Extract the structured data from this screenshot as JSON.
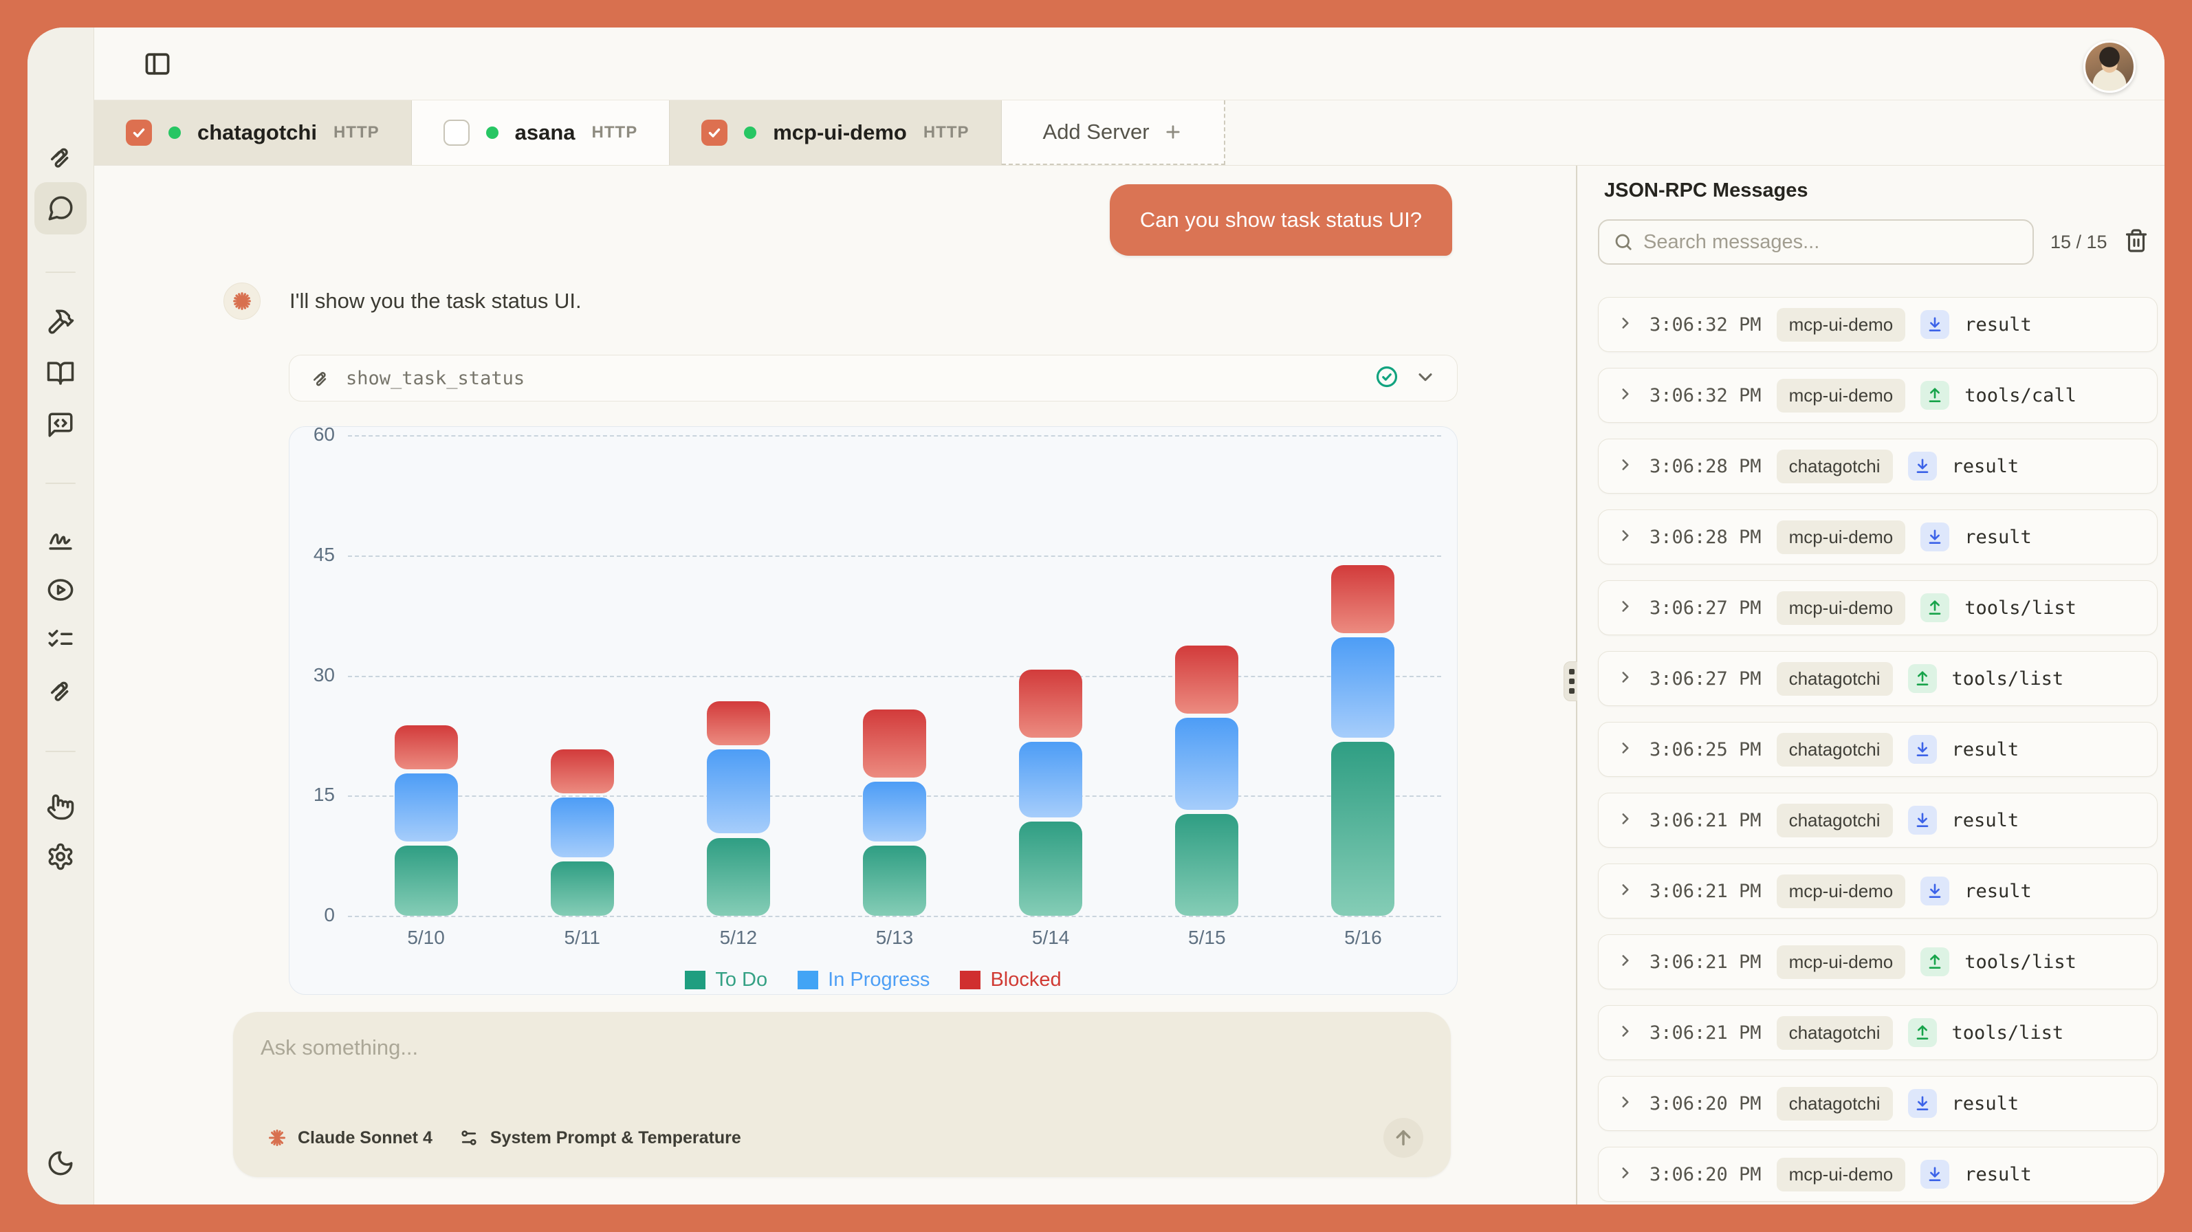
{
  "accent_color": "#D8704F",
  "sidebar": {
    "items": [
      {
        "name": "mcp-logo",
        "active": false
      },
      {
        "name": "chat",
        "active": true
      },
      {
        "name": "hammer-tools",
        "active": false
      },
      {
        "name": "book-resources",
        "active": false
      },
      {
        "name": "message-code-prompts",
        "active": false
      },
      {
        "name": "signature",
        "active": false
      },
      {
        "name": "play",
        "active": false
      },
      {
        "name": "checklist",
        "active": false
      },
      {
        "name": "clip-swirl",
        "active": false
      },
      {
        "name": "hand",
        "active": false
      },
      {
        "name": "settings",
        "active": false
      },
      {
        "name": "dark-mode-moon",
        "active": false
      }
    ]
  },
  "server_tabs": [
    {
      "label": "chatagotchi",
      "protocol": "HTTP",
      "checked": true,
      "active": true,
      "status": "online"
    },
    {
      "label": "asana",
      "protocol": "HTTP",
      "checked": false,
      "active": false,
      "status": "online"
    },
    {
      "label": "mcp-ui-demo",
      "protocol": "HTTP",
      "checked": true,
      "active": true,
      "status": "online"
    }
  ],
  "add_server": {
    "label": "Add Server"
  },
  "chat": {
    "user_message": "Can you show task status UI?",
    "assistant_message": "I'll show you the task status UI.",
    "tool_call": {
      "name": "show_task_status",
      "status": "success"
    }
  },
  "chart_data": {
    "type": "bar",
    "stacked": true,
    "categories": [
      "5/10",
      "5/11",
      "5/12",
      "5/13",
      "5/14",
      "5/15",
      "5/16"
    ],
    "series": [
      {
        "name": "To Do",
        "values": [
          9,
          7,
          10,
          9,
          12,
          13,
          22
        ],
        "color_top": "#2F9E83",
        "color_bottom": "#85CDB6",
        "legend_color": "#1F9E80",
        "label_color": "#35A184"
      },
      {
        "name": "In Progress",
        "values": [
          9,
          8,
          11,
          8,
          10,
          12,
          13
        ],
        "color_top": "#4D9DF6",
        "color_bottom": "#A6CDFB",
        "legend_color": "#42A4F5",
        "label_color": "#4E9FF5"
      },
      {
        "name": "Blocked",
        "values": [
          6,
          6,
          6,
          9,
          9,
          9,
          9
        ],
        "color_top": "#D23B3B",
        "color_bottom": "#EC8B80",
        "legend_color": "#D02F2F",
        "label_color": "#D03A33"
      }
    ],
    "yticks": [
      0,
      15,
      30,
      45,
      60
    ],
    "ylim": [
      0,
      60
    ],
    "grid": "dashed-horizontal",
    "legend_position": "bottom",
    "title": "",
    "xlabel": "",
    "ylabel": ""
  },
  "composer": {
    "placeholder": "Ask something...",
    "model_label": "Claude Sonnet 4",
    "settings_label": "System Prompt & Temperature"
  },
  "rpc_panel": {
    "title": "JSON-RPC Messages",
    "search_placeholder": "Search messages...",
    "count": "15 / 15",
    "messages": [
      {
        "time": "3:06:32 PM",
        "server": "mcp-ui-demo",
        "direction": "down",
        "method": "result"
      },
      {
        "time": "3:06:32 PM",
        "server": "mcp-ui-demo",
        "direction": "up",
        "method": "tools/call"
      },
      {
        "time": "3:06:28 PM",
        "server": "chatagotchi",
        "direction": "down",
        "method": "result"
      },
      {
        "time": "3:06:28 PM",
        "server": "mcp-ui-demo",
        "direction": "down",
        "method": "result"
      },
      {
        "time": "3:06:27 PM",
        "server": "mcp-ui-demo",
        "direction": "up",
        "method": "tools/list"
      },
      {
        "time": "3:06:27 PM",
        "server": "chatagotchi",
        "direction": "up",
        "method": "tools/list"
      },
      {
        "time": "3:06:25 PM",
        "server": "chatagotchi",
        "direction": "down",
        "method": "result"
      },
      {
        "time": "3:06:21 PM",
        "server": "chatagotchi",
        "direction": "down",
        "method": "result"
      },
      {
        "time": "3:06:21 PM",
        "server": "mcp-ui-demo",
        "direction": "down",
        "method": "result"
      },
      {
        "time": "3:06:21 PM",
        "server": "mcp-ui-demo",
        "direction": "up",
        "method": "tools/list"
      },
      {
        "time": "3:06:21 PM",
        "server": "chatagotchi",
        "direction": "up",
        "method": "tools/list"
      },
      {
        "time": "3:06:20 PM",
        "server": "chatagotchi",
        "direction": "down",
        "method": "result"
      },
      {
        "time": "3:06:20 PM",
        "server": "mcp-ui-demo",
        "direction": "down",
        "method": "result"
      }
    ]
  }
}
